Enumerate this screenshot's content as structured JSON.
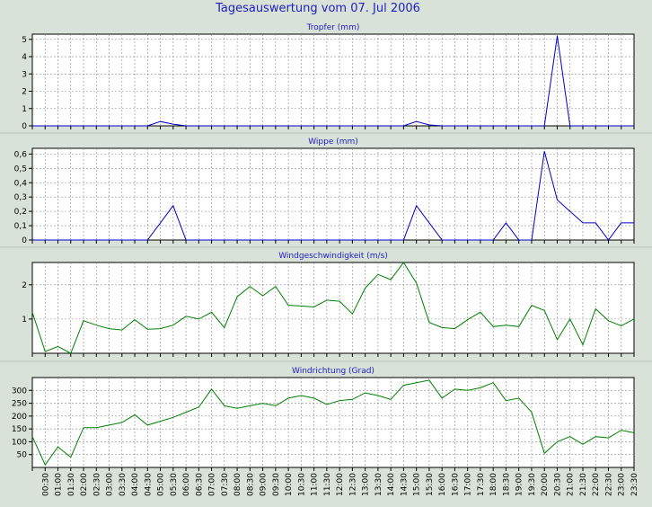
{
  "page": {
    "title": "Tagesauswertung vom 07. Jul 2006",
    "colors": {
      "background": "#d8e2d8",
      "title": "#2020c0",
      "plot_bg": "#ffffff",
      "grid": "#8a8a8a",
      "blue_series": "#0000cc",
      "green_series": "#008000"
    }
  },
  "x_tick_labels": [
    "00:30",
    "01:00",
    "01:30",
    "02:00",
    "02:30",
    "03:00",
    "03:30",
    "04:00",
    "04:30",
    "05:00",
    "05:30",
    "06:00",
    "06:30",
    "07:00",
    "07:30",
    "08:00",
    "08:30",
    "09:00",
    "09:30",
    "10:00",
    "10:30",
    "11:00",
    "11:30",
    "12:00",
    "12:30",
    "13:00",
    "13:30",
    "14:00",
    "14:30",
    "15:00",
    "15:30",
    "16:00",
    "16:30",
    "17:00",
    "17:30",
    "18:00",
    "18:30",
    "19:00",
    "19:30",
    "20:00",
    "20:30",
    "21:00",
    "21:30",
    "22:00",
    "22:30",
    "23:00",
    "23:30"
  ],
  "chart_data": [
    {
      "type": "line",
      "title": "Tropfer (mm)",
      "color": "#0000cc",
      "y_tick_labels": [
        "0",
        "1",
        "2",
        "3",
        "4",
        "5"
      ],
      "ylim": [
        0,
        5.3
      ],
      "values": [
        0,
        0,
        0,
        0,
        0,
        0,
        0,
        0,
        0,
        0,
        0.25,
        0.1,
        0,
        0,
        0,
        0,
        0,
        0,
        0,
        0,
        0,
        0,
        0,
        0,
        0,
        0,
        0,
        0,
        0,
        0,
        0.25,
        0.05,
        0,
        0,
        0,
        0,
        0,
        0,
        0,
        0,
        0,
        5.2,
        0,
        0,
        0,
        0,
        0,
        0
      ]
    },
    {
      "type": "line",
      "title": "Wippe (mm)",
      "color": "#0000cc",
      "y_tick_labels": [
        "0",
        "0,1",
        "0,2",
        "0,3",
        "0,4",
        "0,5",
        "0,6"
      ],
      "ylim": [
        0,
        0.64
      ],
      "values": [
        0,
        0,
        0,
        0,
        0,
        0,
        0,
        0,
        0,
        0,
        0.12,
        0.24,
        0,
        0,
        0,
        0,
        0,
        0,
        0,
        0,
        0,
        0,
        0,
        0,
        0,
        0,
        0,
        0,
        0,
        0,
        0.24,
        0.12,
        0,
        0,
        0,
        0,
        0,
        0.12,
        0,
        0,
        0.62,
        0.28,
        0.2,
        0.12,
        0.12,
        0,
        0.12,
        0.12
      ]
    },
    {
      "type": "line",
      "title": "Windgeschwindigkeit (m/s)",
      "color": "#008000",
      "y_tick_labels": [
        "1",
        "2"
      ],
      "ylim": [
        0,
        2.65
      ],
      "values": [
        1.2,
        0.05,
        0.2,
        0,
        0.95,
        0.82,
        0.72,
        0.68,
        0.98,
        0.7,
        0.72,
        0.82,
        1.08,
        1.0,
        1.2,
        0.75,
        1.65,
        1.95,
        1.68,
        1.95,
        1.4,
        1.38,
        1.35,
        1.55,
        1.52,
        1.15,
        1.9,
        2.3,
        2.15,
        2.65,
        2.05,
        0.9,
        0.75,
        0.72,
        0.98,
        1.2,
        0.78,
        0.82,
        0.78,
        1.4,
        1.25,
        0.4,
        1.0,
        0.25,
        1.3,
        0.95,
        0.8,
        1.0
      ]
    },
    {
      "type": "line",
      "title": "Windrichtung (Grad)",
      "color": "#008000",
      "y_tick_labels": [
        "50",
        "100",
        "150",
        "200",
        "250",
        "300"
      ],
      "ylim": [
        0,
        350
      ],
      "values": [
        120,
        10,
        80,
        40,
        155,
        155,
        165,
        175,
        205,
        165,
        180,
        195,
        215,
        235,
        305,
        240,
        230,
        240,
        250,
        240,
        270,
        280,
        270,
        245,
        260,
        265,
        290,
        280,
        265,
        320,
        330,
        340,
        270,
        305,
        300,
        310,
        330,
        260,
        270,
        215,
        55,
        100,
        120,
        90,
        120,
        115,
        145,
        135
      ]
    }
  ]
}
